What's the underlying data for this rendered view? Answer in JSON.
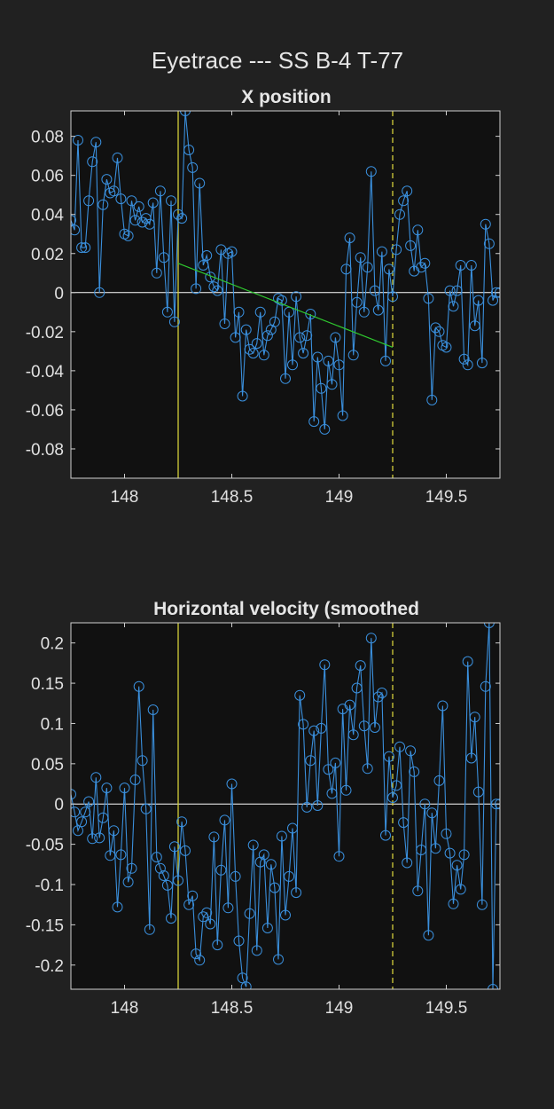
{
  "figure": {
    "title": "Eyetrace --- SS B-4 T-77",
    "background": "#212121",
    "axes_background": "#111111",
    "line_color": "#3a8fdc",
    "zero_line_color": "#ffffff",
    "event_line_color": "#d4cf3a",
    "fit_line_color": "#2fc92f"
  },
  "chart_data": [
    {
      "type": "line",
      "title": "X position",
      "xlabel": "",
      "ylabel": "",
      "xlim": [
        147.75,
        149.75
      ],
      "ylim": [
        -0.095,
        0.093
      ],
      "xticks": [
        "148",
        "148.5",
        "149",
        "149.5"
      ],
      "xtick_values": [
        148,
        148.5,
        149,
        149.5
      ],
      "yticks": [
        "0.08",
        "0.06",
        "0.04",
        "0.02",
        "0",
        "-0.02",
        "-0.04",
        "-0.06",
        "-0.08"
      ],
      "ytick_values": [
        0.08,
        0.06,
        0.04,
        0.02,
        0,
        -0.02,
        -0.04,
        -0.06,
        -0.08
      ],
      "grid": false,
      "marker": "circle",
      "series": [
        {
          "x": [
            147.75,
            147.767,
            147.783,
            147.8,
            147.817,
            147.833,
            147.85,
            147.867,
            147.883,
            147.9,
            147.917,
            147.933,
            147.95,
            147.967,
            147.983,
            148.0,
            148.017,
            148.033,
            148.05,
            148.067,
            148.083,
            148.1,
            148.117,
            148.133,
            148.15,
            148.167,
            148.183,
            148.2,
            148.217,
            148.233,
            148.25,
            148.267,
            148.283,
            148.3,
            148.317,
            148.333,
            148.35,
            148.367,
            148.383,
            148.4,
            148.417,
            148.433,
            148.45,
            148.467,
            148.483,
            148.5,
            148.517,
            148.533,
            148.55,
            148.567,
            148.583,
            148.6,
            148.617,
            148.633,
            148.65,
            148.667,
            148.683,
            148.7,
            148.717,
            148.733,
            148.75,
            148.767,
            148.783,
            148.8,
            148.817,
            148.833,
            148.85,
            148.867,
            148.883,
            148.9,
            148.917,
            148.933,
            148.95,
            148.967,
            148.983,
            149.0,
            149.017,
            149.033,
            149.05,
            149.067,
            149.083,
            149.1,
            149.117,
            149.133,
            149.15,
            149.167,
            149.183,
            149.2,
            149.217,
            149.233,
            149.25,
            149.267,
            149.283,
            149.3,
            149.317,
            149.333,
            149.35,
            149.367,
            149.383,
            149.4,
            149.417,
            149.433,
            149.45,
            149.467,
            149.483,
            149.5,
            149.517,
            149.533,
            149.55,
            149.567,
            149.583,
            149.6,
            149.617,
            149.633,
            149.65,
            149.667,
            149.683,
            149.7,
            149.717,
            149.733,
            149.75
          ],
          "y": [
            0.037,
            0.032,
            0.078,
            0.023,
            0.023,
            0.047,
            0.067,
            0.077,
            0.0,
            0.045,
            0.058,
            0.051,
            0.052,
            0.069,
            0.048,
            0.03,
            0.029,
            0.047,
            0.037,
            0.044,
            0.036,
            0.038,
            0.035,
            0.046,
            0.01,
            0.052,
            0.018,
            -0.01,
            0.047,
            -0.015,
            0.04,
            0.038,
            0.093,
            0.073,
            0.064,
            0.002,
            0.056,
            0.014,
            0.019,
            0.008,
            0.003,
            0.001,
            0.022,
            -0.016,
            0.02,
            0.021,
            -0.023,
            -0.01,
            -0.053,
            -0.019,
            -0.029,
            -0.031,
            -0.026,
            -0.01,
            -0.032,
            -0.022,
            -0.019,
            -0.015,
            -0.003,
            -0.004,
            -0.044,
            -0.01,
            -0.037,
            -0.002,
            -0.023,
            -0.031,
            -0.022,
            -0.011,
            -0.066,
            -0.033,
            -0.049,
            -0.07,
            -0.035,
            -0.047,
            -0.023,
            -0.037,
            -0.063,
            0.012,
            0.028,
            -0.032,
            -0.005,
            0.018,
            -0.01,
            0.013,
            0.062,
            0.001,
            -0.009,
            0.021,
            -0.035,
            0.012,
            -0.002,
            0.022,
            0.04,
            0.047,
            0.052,
            0.024,
            0.011,
            0.032,
            0.013,
            0.015,
            -0.003,
            -0.055,
            -0.018,
            -0.02,
            -0.027,
            -0.028,
            0.001,
            -0.007,
            0.001,
            0.014,
            -0.034,
            -0.037,
            0.014,
            -0.017,
            -0.004,
            -0.036,
            0.035,
            0.025,
            -0.004,
            0.0,
            0.0
          ]
        }
      ],
      "fit_line": {
        "x": [
          148.25,
          149.25
        ],
        "y": [
          0.015,
          -0.028
        ]
      },
      "event_lines": [
        {
          "x": 148.25,
          "style": "solid"
        },
        {
          "x": 149.25,
          "style": "dashed"
        }
      ]
    },
    {
      "type": "line",
      "title": "Horizontal velocity (smoothed",
      "xlabel": "",
      "ylabel": "",
      "xlim": [
        147.75,
        149.75
      ],
      "ylim": [
        -0.23,
        0.225
      ],
      "xticks": [
        "148",
        "148.5",
        "149",
        "149.5"
      ],
      "xtick_values": [
        148,
        148.5,
        149,
        149.5
      ],
      "yticks": [
        "0.2",
        "0.15",
        "0.1",
        "0.05",
        "0",
        "-0.05",
        "-0.1",
        "-0.15",
        "-0.2"
      ],
      "ytick_values": [
        0.2,
        0.15,
        0.1,
        0.05,
        0,
        -0.05,
        -0.1,
        -0.15,
        -0.2
      ],
      "grid": false,
      "marker": "circle",
      "series": [
        {
          "x": [
            147.75,
            147.767,
            147.783,
            147.8,
            147.817,
            147.833,
            147.85,
            147.867,
            147.883,
            147.9,
            147.917,
            147.933,
            147.95,
            147.967,
            147.983,
            148.0,
            148.017,
            148.033,
            148.05,
            148.067,
            148.083,
            148.1,
            148.117,
            148.133,
            148.15,
            148.167,
            148.183,
            148.2,
            148.217,
            148.233,
            148.25,
            148.267,
            148.283,
            148.3,
            148.317,
            148.333,
            148.35,
            148.367,
            148.383,
            148.4,
            148.417,
            148.433,
            148.45,
            148.467,
            148.483,
            148.5,
            148.517,
            148.533,
            148.55,
            148.567,
            148.583,
            148.6,
            148.617,
            148.633,
            148.65,
            148.667,
            148.683,
            148.7,
            148.717,
            148.733,
            148.75,
            148.767,
            148.783,
            148.8,
            148.817,
            148.833,
            148.85,
            148.867,
            148.883,
            148.9,
            148.917,
            148.933,
            148.95,
            148.967,
            148.983,
            149.0,
            149.017,
            149.033,
            149.05,
            149.067,
            149.083,
            149.1,
            149.117,
            149.133,
            149.15,
            149.167,
            149.183,
            149.2,
            149.217,
            149.233,
            149.25,
            149.267,
            149.283,
            149.3,
            149.317,
            149.333,
            149.35,
            149.367,
            149.383,
            149.4,
            149.417,
            149.433,
            149.45,
            149.467,
            149.483,
            149.5,
            149.517,
            149.533,
            149.55,
            149.567,
            149.583,
            149.6,
            149.617,
            149.633,
            149.65,
            149.667,
            149.683,
            149.7,
            149.717,
            149.733,
            149.75
          ],
          "y": [
            0.012,
            -0.01,
            -0.033,
            -0.022,
            -0.01,
            0.003,
            -0.043,
            0.033,
            -0.042,
            -0.017,
            0.02,
            -0.064,
            -0.033,
            -0.128,
            -0.063,
            0.02,
            -0.097,
            -0.08,
            0.03,
            0.146,
            0.054,
            -0.006,
            -0.156,
            0.117,
            -0.066,
            -0.08,
            -0.089,
            -0.101,
            -0.142,
            -0.053,
            -0.095,
            -0.022,
            -0.058,
            -0.125,
            -0.114,
            -0.186,
            -0.194,
            -0.14,
            -0.135,
            -0.149,
            -0.041,
            -0.175,
            -0.082,
            -0.02,
            -0.129,
            0.025,
            -0.09,
            -0.17,
            -0.216,
            -0.227,
            -0.136,
            -0.051,
            -0.182,
            -0.072,
            -0.063,
            -0.154,
            -0.075,
            -0.104,
            -0.193,
            -0.04,
            -0.138,
            -0.09,
            -0.03,
            -0.11,
            0.135,
            0.099,
            -0.004,
            0.054,
            0.091,
            -0.002,
            0.094,
            0.173,
            0.043,
            0.013,
            0.051,
            -0.065,
            0.118,
            0.017,
            0.123,
            0.086,
            0.144,
            0.172,
            0.097,
            0.044,
            0.206,
            0.095,
            0.133,
            0.138,
            -0.039,
            0.059,
            0.008,
            0.023,
            0.071,
            -0.023,
            -0.073,
            0.066,
            0.04,
            -0.108,
            -0.057,
            0.0,
            -0.163,
            -0.011,
            -0.055,
            0.029,
            0.122,
            -0.037,
            -0.061,
            -0.124,
            -0.076,
            -0.106,
            -0.063,
            0.177,
            0.057,
            0.108,
            0.015,
            -0.125,
            0.146,
            0.225,
            -0.23,
            0.0,
            0.0
          ]
        }
      ],
      "event_lines": [
        {
          "x": 148.25,
          "style": "solid"
        },
        {
          "x": 149.25,
          "style": "dashed"
        }
      ]
    }
  ]
}
